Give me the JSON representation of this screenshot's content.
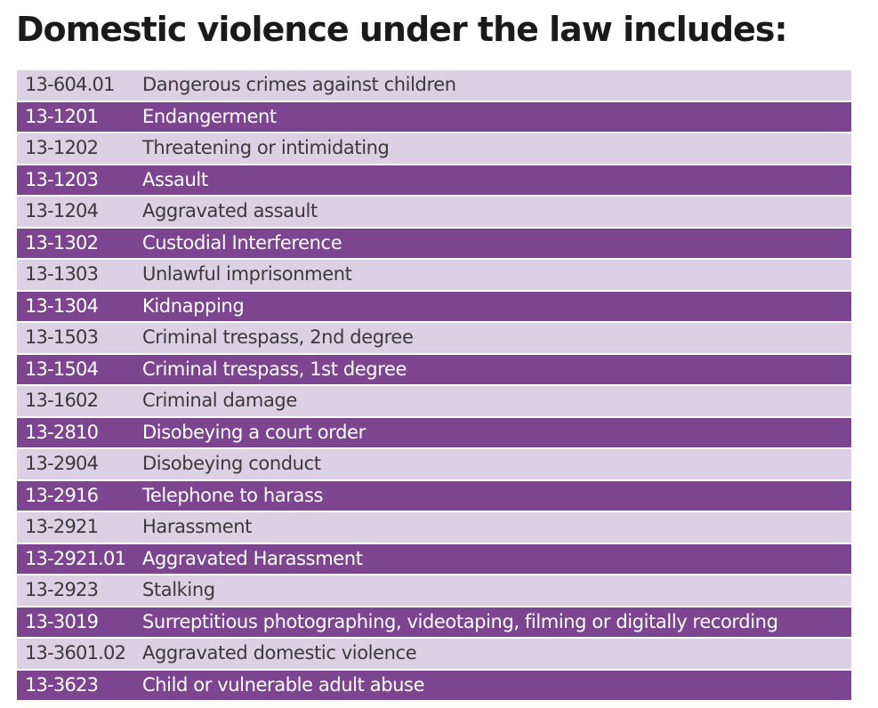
{
  "title": "Domestic violence under the law includes:",
  "colors": {
    "row_light": "#dcd0e5",
    "row_dark": "#7d4590",
    "text_light_row": "#3a3a3a",
    "text_dark_row": "#ffffff"
  },
  "rows": [
    {
      "code": "13-604.01",
      "description": "Dangerous crimes against children"
    },
    {
      "code": "13-1201",
      "description": "Endangerment"
    },
    {
      "code": "13-1202",
      "description": "Threatening or intimidating"
    },
    {
      "code": "13-1203",
      "description": "Assault"
    },
    {
      "code": "13-1204",
      "description": "Aggravated assault"
    },
    {
      "code": "13-1302",
      "description": "Custodial Interference"
    },
    {
      "code": "13-1303",
      "description": "Unlawful imprisonment"
    },
    {
      "code": "13-1304",
      "description": "Kidnapping"
    },
    {
      "code": "13-1503",
      "description": "Criminal trespass, 2nd degree"
    },
    {
      "code": "13-1504",
      "description": "Criminal trespass, 1st degree"
    },
    {
      "code": "13-1602",
      "description": "Criminal damage"
    },
    {
      "code": "13-2810",
      "description": "Disobeying a court order"
    },
    {
      "code": "13-2904",
      "description": "Disobeying conduct"
    },
    {
      "code": "13-2916",
      "description": "Telephone to harass"
    },
    {
      "code": "13-2921",
      "description": "Harassment"
    },
    {
      "code": "13-2921.01",
      "description": "Aggravated Harassment"
    },
    {
      "code": "13-2923",
      "description": "Stalking"
    },
    {
      "code": "13-3019",
      "description": "Surreptitious photographing, videotaping, filming or digitally recording"
    },
    {
      "code": "13-3601.02",
      "description": "Aggravated domestic violence"
    },
    {
      "code": "13-3623",
      "description": "Child or vulnerable adult abuse"
    }
  ]
}
